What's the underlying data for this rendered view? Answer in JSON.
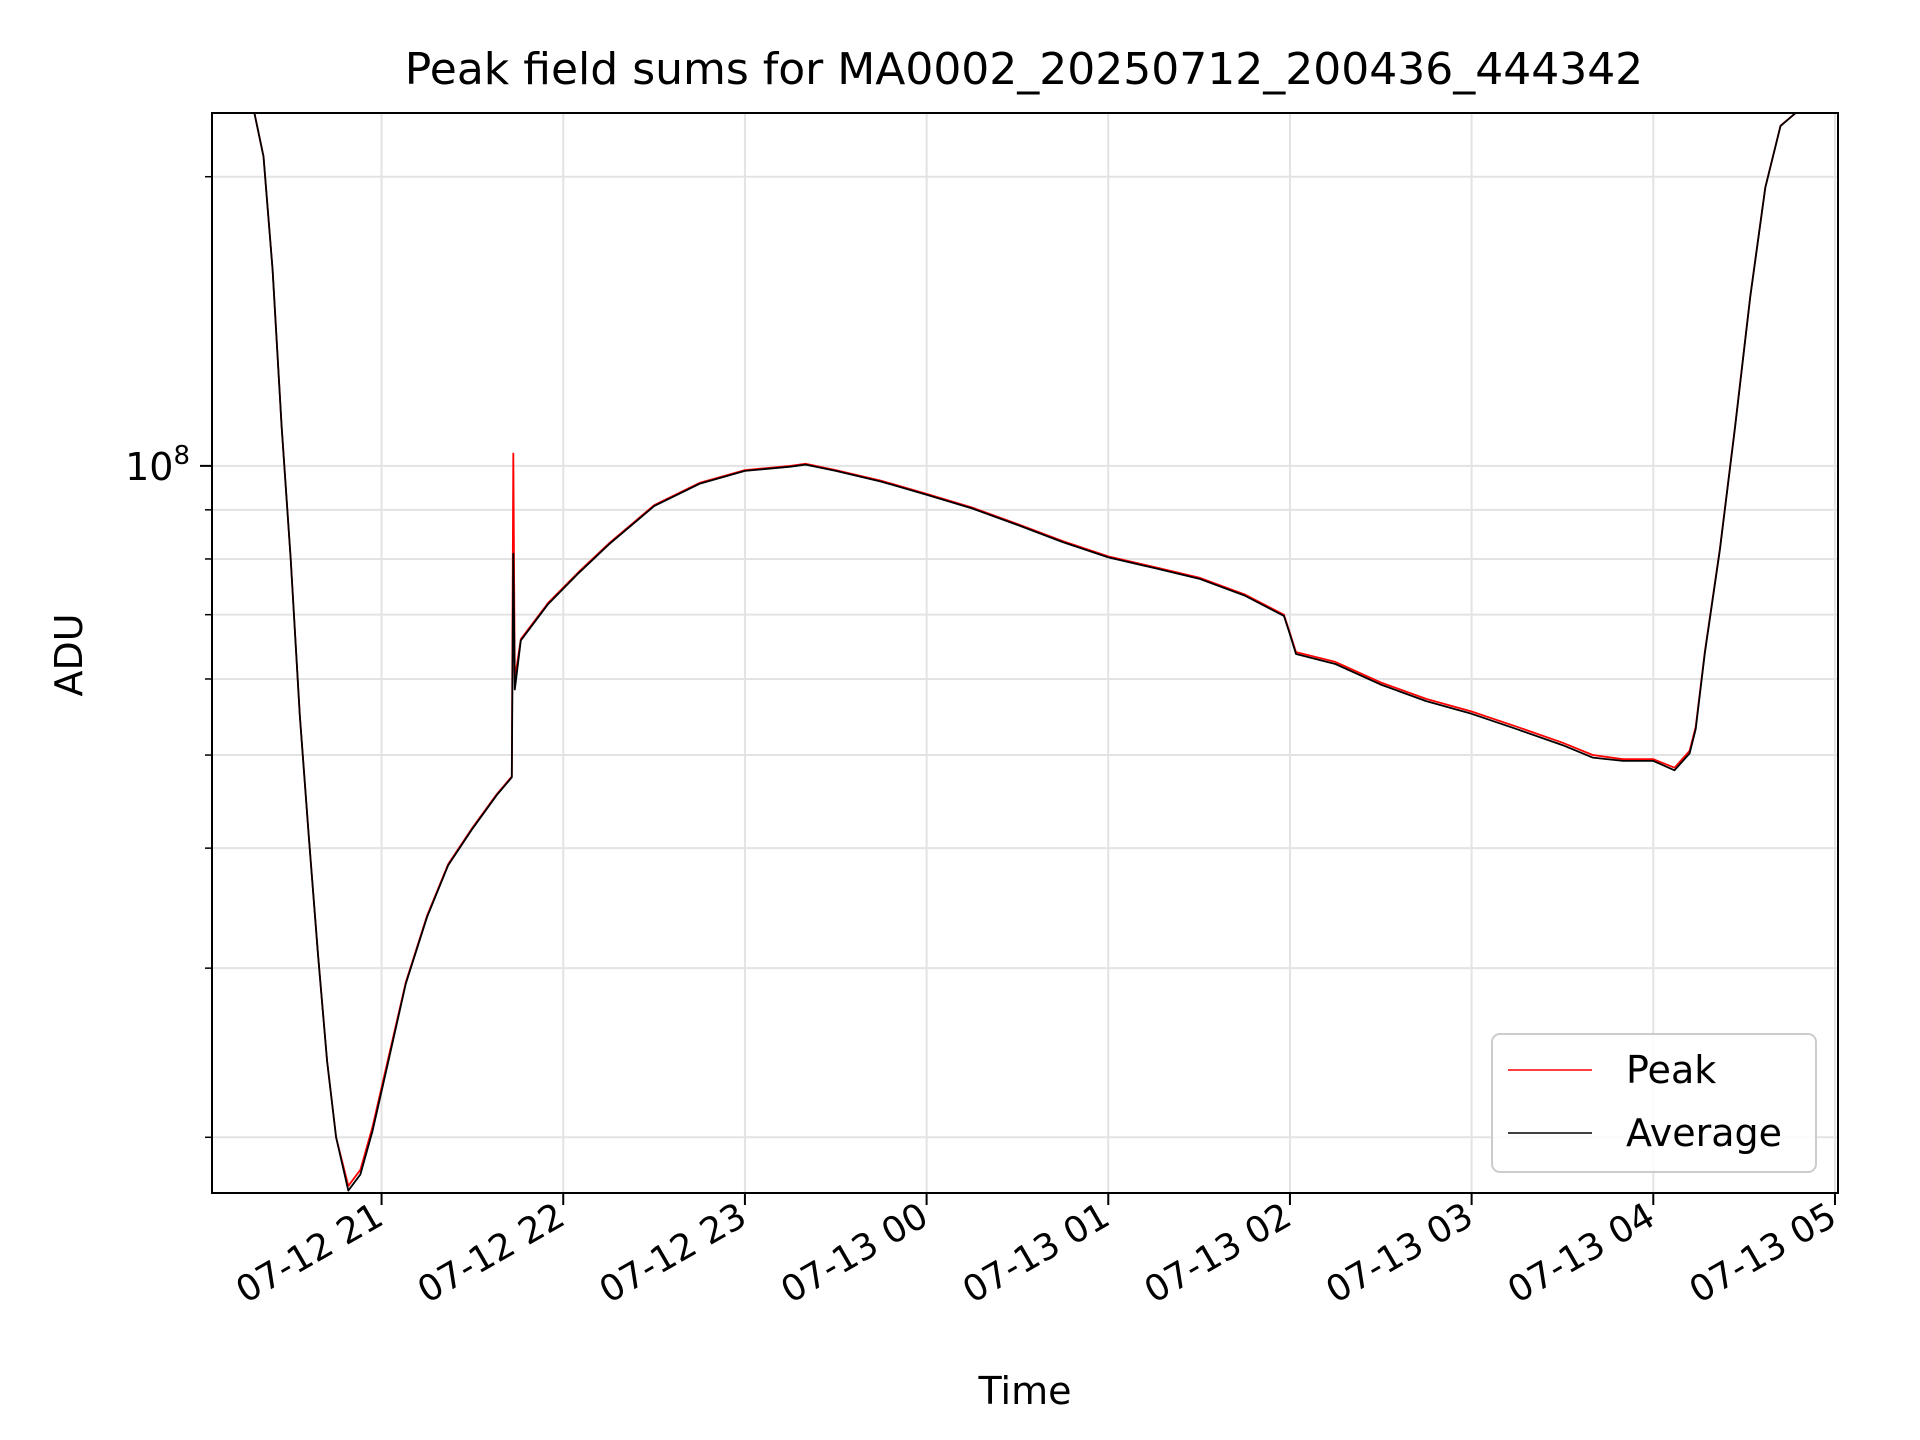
{
  "chart_data": {
    "type": "line",
    "title": "Peak field sums for MA0002_20250712_200436_444342",
    "xlabel": "Time",
    "ylabel": "ADU",
    "y_scale": "log",
    "y_tick_label": {
      "base": "10",
      "exponent": "8"
    },
    "ylim": [
      17500000,
      233000000
    ],
    "xlim": [
      "2025-07-12 20:04",
      "2025-07-13 05:01"
    ],
    "x_tick_labels": [
      "07-12 21",
      "07-12 22",
      "07-12 23",
      "07-13 00",
      "07-13 01",
      "07-13 02",
      "07-13 03",
      "07-13 04",
      "07-13 05"
    ],
    "x_tick_values": [
      "2025-07-12 21:00",
      "2025-07-12 22:00",
      "2025-07-12 23:00",
      "2025-07-13 00:00",
      "2025-07-13 01:00",
      "2025-07-13 02:00",
      "2025-07-13 03:00",
      "2025-07-13 04:00",
      "2025-07-13 05:00"
    ],
    "grid": true,
    "legend_position": "lower-right",
    "series": [
      {
        "name": "Peak",
        "color": "#ff0000",
        "points": [
          [
            "2025-07-12 20:18",
            233000000
          ],
          [
            "2025-07-12 20:21",
            210000000
          ],
          [
            "2025-07-12 20:24",
            160000000
          ],
          [
            "2025-07-12 20:27",
            110000000
          ],
          [
            "2025-07-12 20:30",
            80000000
          ],
          [
            "2025-07-12 20:33",
            55000000
          ],
          [
            "2025-07-12 20:36",
            41000000
          ],
          [
            "2025-07-12 20:39",
            31000000
          ],
          [
            "2025-07-12 20:42",
            24000000
          ],
          [
            "2025-07-12 20:45",
            20000000
          ],
          [
            "2025-07-12 20:49",
            17800000
          ],
          [
            "2025-07-12 20:53",
            18500000
          ],
          [
            "2025-07-12 20:57",
            20500000
          ],
          [
            "2025-07-12 21:02",
            24000000
          ],
          [
            "2025-07-12 21:08",
            29000000
          ],
          [
            "2025-07-12 21:15",
            34000000
          ],
          [
            "2025-07-12 21:22",
            38500000
          ],
          [
            "2025-07-12 21:30",
            42000000
          ],
          [
            "2025-07-12 21:38",
            45500000
          ],
          [
            "2025-07-12 21:43",
            47500000
          ],
          [
            "2025-07-12 21:43:30",
            103000000
          ],
          [
            "2025-07-12 21:44",
            60000000
          ],
          [
            "2025-07-12 21:46",
            66000000
          ],
          [
            "2025-07-12 21:55",
            72000000
          ],
          [
            "2025-07-12 22:05",
            77500000
          ],
          [
            "2025-07-12 22:15",
            83000000
          ],
          [
            "2025-07-12 22:30",
            91000000
          ],
          [
            "2025-07-12 22:45",
            96000000
          ],
          [
            "2025-07-12 23:00",
            99000000
          ],
          [
            "2025-07-12 23:15",
            100000000
          ],
          [
            "2025-07-12 23:20",
            100500000
          ],
          [
            "2025-07-12 23:30",
            99000000
          ],
          [
            "2025-07-12 23:45",
            96500000
          ],
          [
            "2025-07-13 00:00",
            93500000
          ],
          [
            "2025-07-13 00:15",
            90500000
          ],
          [
            "2025-07-13 00:30",
            87000000
          ],
          [
            "2025-07-13 00:45",
            83500000
          ],
          [
            "2025-07-13 01:00",
            80500000
          ],
          [
            "2025-07-13 01:15",
            78500000
          ],
          [
            "2025-07-13 01:30",
            76500000
          ],
          [
            "2025-07-13 01:45",
            73500000
          ],
          [
            "2025-07-13 01:58",
            70000000
          ],
          [
            "2025-07-13 02:00",
            67000000
          ],
          [
            "2025-07-13 02:02",
            64000000
          ],
          [
            "2025-07-13 02:15",
            62500000
          ],
          [
            "2025-07-13 02:30",
            59500000
          ],
          [
            "2025-07-13 02:45",
            57200000
          ],
          [
            "2025-07-13 03:00",
            55500000
          ],
          [
            "2025-07-13 03:15",
            53500000
          ],
          [
            "2025-07-13 03:30",
            51500000
          ],
          [
            "2025-07-13 03:40",
            50000000
          ],
          [
            "2025-07-13 03:50",
            49500000
          ],
          [
            "2025-07-13 04:00",
            49500000
          ],
          [
            "2025-07-13 04:07",
            48500000
          ],
          [
            "2025-07-13 04:12",
            50500000
          ],
          [
            "2025-07-13 04:14",
            53500000
          ],
          [
            "2025-07-13 04:17",
            64000000
          ],
          [
            "2025-07-13 04:22",
            82000000
          ],
          [
            "2025-07-13 04:27",
            110000000
          ],
          [
            "2025-07-13 04:32",
            150000000
          ],
          [
            "2025-07-13 04:37",
            195000000
          ],
          [
            "2025-07-13 04:42",
            226000000
          ],
          [
            "2025-07-13 04:47",
            233000000
          ],
          [
            "2025-07-13 05:01",
            233000000
          ]
        ]
      },
      {
        "name": "Average",
        "color": "#000000",
        "points": [
          [
            "2025-07-12 20:18",
            233000000
          ],
          [
            "2025-07-12 20:21",
            210000000
          ],
          [
            "2025-07-12 20:24",
            160000000
          ],
          [
            "2025-07-12 20:27",
            110000000
          ],
          [
            "2025-07-12 20:30",
            80000000
          ],
          [
            "2025-07-12 20:33",
            55000000
          ],
          [
            "2025-07-12 20:36",
            41000000
          ],
          [
            "2025-07-12 20:39",
            31000000
          ],
          [
            "2025-07-12 20:42",
            24000000
          ],
          [
            "2025-07-12 20:45",
            20000000
          ],
          [
            "2025-07-12 20:49",
            17600000
          ],
          [
            "2025-07-12 20:53",
            18300000
          ],
          [
            "2025-07-12 20:57",
            20300000
          ],
          [
            "2025-07-12 21:02",
            23800000
          ],
          [
            "2025-07-12 21:08",
            28900000
          ],
          [
            "2025-07-12 21:15",
            33900000
          ],
          [
            "2025-07-12 21:22",
            38400000
          ],
          [
            "2025-07-12 21:30",
            41900000
          ],
          [
            "2025-07-12 21:38",
            45400000
          ],
          [
            "2025-07-12 21:43",
            47400000
          ],
          [
            "2025-07-12 21:43:30",
            81000000
          ],
          [
            "2025-07-12 21:44",
            58500000
          ],
          [
            "2025-07-12 21:46",
            65800000
          ],
          [
            "2025-07-12 21:55",
            71800000
          ],
          [
            "2025-07-12 22:05",
            77300000
          ],
          [
            "2025-07-12 22:15",
            82800000
          ],
          [
            "2025-07-12 22:30",
            90800000
          ],
          [
            "2025-07-12 22:45",
            95800000
          ],
          [
            "2025-07-12 23:00",
            98800000
          ],
          [
            "2025-07-12 23:15",
            99800000
          ],
          [
            "2025-07-12 23:20",
            100300000
          ],
          [
            "2025-07-12 23:30",
            98800000
          ],
          [
            "2025-07-12 23:45",
            96300000
          ],
          [
            "2025-07-13 00:00",
            93300000
          ],
          [
            "2025-07-13 00:15",
            90300000
          ],
          [
            "2025-07-13 00:30",
            86800000
          ],
          [
            "2025-07-13 00:45",
            83300000
          ],
          [
            "2025-07-13 01:00",
            80300000
          ],
          [
            "2025-07-13 01:15",
            78300000
          ],
          [
            "2025-07-13 01:30",
            76300000
          ],
          [
            "2025-07-13 01:45",
            73300000
          ],
          [
            "2025-07-13 01:58",
            69800000
          ],
          [
            "2025-07-13 02:00",
            66800000
          ],
          [
            "2025-07-13 02:02",
            63700000
          ],
          [
            "2025-07-13 02:15",
            62200000
          ],
          [
            "2025-07-13 02:30",
            59200000
          ],
          [
            "2025-07-13 02:45",
            56900000
          ],
          [
            "2025-07-13 03:00",
            55200000
          ],
          [
            "2025-07-13 03:15",
            53200000
          ],
          [
            "2025-07-13 03:30",
            51200000
          ],
          [
            "2025-07-13 03:40",
            49700000
          ],
          [
            "2025-07-13 03:50",
            49300000
          ],
          [
            "2025-07-13 04:00",
            49300000
          ],
          [
            "2025-07-13 04:07",
            48200000
          ],
          [
            "2025-07-13 04:12",
            50200000
          ],
          [
            "2025-07-13 04:14",
            53200000
          ],
          [
            "2025-07-13 04:17",
            63800000
          ],
          [
            "2025-07-13 04:22",
            81800000
          ],
          [
            "2025-07-13 04:27",
            109800000
          ],
          [
            "2025-07-13 04:32",
            149800000
          ],
          [
            "2025-07-13 04:37",
            194800000
          ],
          [
            "2025-07-13 04:42",
            225800000
          ],
          [
            "2025-07-13 04:47",
            233000000
          ],
          [
            "2025-07-13 05:01",
            233000000
          ]
        ]
      }
    ]
  }
}
